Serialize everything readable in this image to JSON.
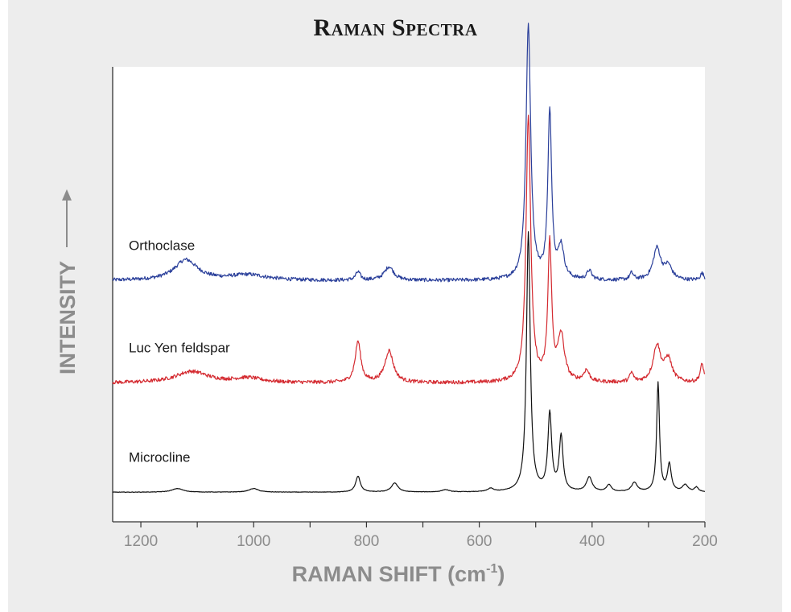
{
  "chart_data": {
    "type": "line",
    "title": "Raman Spectra",
    "xlabel": "RAMAN SHIFT (cm",
    "xlabel_sup": "-1",
    "xlabel_end": ")",
    "ylabel": "INTENSITY",
    "xlim": [
      1250,
      200
    ],
    "x_reversed": true,
    "x_ticks": [
      "1200",
      "1000",
      "800",
      "600",
      "400",
      "200"
    ],
    "y_ticks": "none",
    "grid": false,
    "series": [
      {
        "name": "Orthoclase",
        "color": "#2a3f9a",
        "baseline": 0.53,
        "peaks": [
          [
            1120,
            0.045,
            25
          ],
          [
            1010,
            0.012,
            40
          ],
          [
            815,
            0.018,
            5
          ],
          [
            760,
            0.03,
            10
          ],
          [
            513,
            0.56,
            5
          ],
          [
            475,
            0.37,
            4
          ],
          [
            455,
            0.07,
            6
          ],
          [
            405,
            0.02,
            5
          ],
          [
            330,
            0.015,
            4
          ],
          [
            285,
            0.07,
            8
          ],
          [
            265,
            0.03,
            8
          ],
          [
            205,
            0.015,
            4
          ]
        ],
        "noise": 0.004
      },
      {
        "name": "Luc Yen feldspar",
        "color": "#d42a30",
        "baseline": 0.305,
        "peaks": [
          [
            1110,
            0.025,
            35
          ],
          [
            1010,
            0.01,
            30
          ],
          [
            815,
            0.09,
            6
          ],
          [
            760,
            0.07,
            9
          ],
          [
            513,
            0.58,
            5
          ],
          [
            475,
            0.3,
            4
          ],
          [
            455,
            0.1,
            7
          ],
          [
            410,
            0.025,
            6
          ],
          [
            330,
            0.02,
            4
          ],
          [
            285,
            0.08,
            8
          ],
          [
            265,
            0.05,
            8
          ],
          [
            205,
            0.04,
            4
          ]
        ],
        "noise": 0.004
      },
      {
        "name": "Microcline",
        "color": "#111111",
        "baseline": 0.065,
        "peaks": [
          [
            1135,
            0.008,
            12
          ],
          [
            1000,
            0.008,
            10
          ],
          [
            815,
            0.035,
            5
          ],
          [
            750,
            0.02,
            7
          ],
          [
            660,
            0.005,
            8
          ],
          [
            580,
            0.007,
            6
          ],
          [
            513,
            0.57,
            4
          ],
          [
            475,
            0.17,
            4
          ],
          [
            455,
            0.12,
            4
          ],
          [
            405,
            0.032,
            6
          ],
          [
            370,
            0.015,
            5
          ],
          [
            325,
            0.02,
            6
          ],
          [
            283,
            0.24,
            3
          ],
          [
            263,
            0.06,
            4
          ],
          [
            235,
            0.015,
            6
          ],
          [
            215,
            0.01,
            4
          ]
        ],
        "noise": 0.0005
      }
    ]
  }
}
